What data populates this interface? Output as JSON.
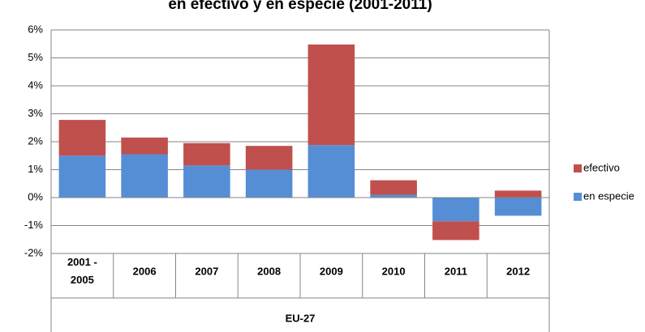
{
  "chart_data": {
    "type": "bar",
    "stacked": true,
    "title": "en efectivo y en especie (2001-2011)",
    "categories": [
      "2001 - 2005",
      "2006",
      "2007",
      "2008",
      "2009",
      "2010",
      "2011",
      "2012"
    ],
    "group_label": "EU-27",
    "series": [
      {
        "name": "en especie",
        "color": "#558ed5",
        "values": [
          1.5,
          1.55,
          1.15,
          1.0,
          1.88,
          0.1,
          -0.85,
          -0.65
        ]
      },
      {
        "name": "efectivo",
        "color": "#c0504d",
        "values": [
          1.28,
          0.6,
          0.8,
          0.85,
          3.6,
          0.52,
          -0.67,
          0.25
        ]
      }
    ],
    "ylim": [
      -2,
      6
    ],
    "yticks": [
      {
        "value": -2,
        "label": "-2%"
      },
      {
        "value": -1,
        "label": "-1%"
      },
      {
        "value": 0,
        "label": "0%"
      },
      {
        "value": 1,
        "label": "1%"
      },
      {
        "value": 2,
        "label": "2%"
      },
      {
        "value": 3,
        "label": "3%"
      },
      {
        "value": 4,
        "label": "4%"
      },
      {
        "value": 5,
        "label": "5%"
      },
      {
        "value": 6,
        "label": "6%"
      }
    ],
    "grid": true,
    "legend": "right"
  }
}
